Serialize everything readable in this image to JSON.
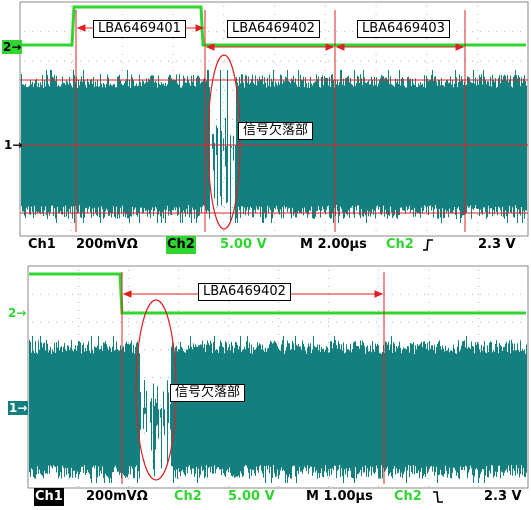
{
  "screens": [
    {
      "labels": {
        "segment_1": "LBA6469401",
        "segment_2": "LBA6469402",
        "segment_3": "LBA6469403",
        "dropout_note": "信号欠落部"
      },
      "markers": {
        "ch2_marker": "2",
        "ch1_marker": "1"
      },
      "status": {
        "ch1_name": "Ch1",
        "ch1_scale": "200mVΩ",
        "ch2_name": "Ch2",
        "ch2_scale": "5.00 V",
        "timebase": "M 2.00µs",
        "trigger_source": "Ch2",
        "trigger_slope_icon": "rising-edge-icon",
        "trigger_level": "2.3 V"
      }
    },
    {
      "labels": {
        "segment_1": "LBA6469402",
        "dropout_note": "信号欠落部"
      },
      "markers": {
        "ch2_marker": "2",
        "ch1_marker": "1"
      },
      "status": {
        "ch1_name": "Ch1",
        "ch1_scale": "200mVΩ",
        "ch2_name": "Ch2",
        "ch2_scale": "5.00 V",
        "timebase": "M 1.00µs",
        "trigger_source": "Ch2",
        "trigger_slope_icon": "falling-edge-icon",
        "trigger_level": "2.3 V"
      }
    }
  ],
  "colors": {
    "ch1_signal": "#137f7f",
    "ch2_signal": "#2fd62f",
    "annotation_red": "#e02020",
    "grid_dot": "#b0b0b0"
  }
}
